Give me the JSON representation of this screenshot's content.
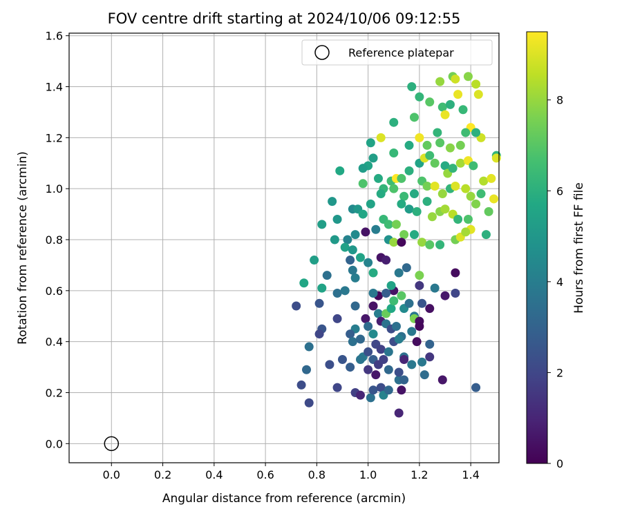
{
  "chart_data": {
    "type": "scatter",
    "title": "FOV centre drift starting at 2024/10/06 09:12:55",
    "xlabel": "Angular distance from reference (arcmin)",
    "ylabel": "Rotation from reference (arcmin)",
    "colorbar_label": "Hours from first FF file",
    "xlim": [
      -0.165,
      1.51
    ],
    "ylim": [
      -0.075,
      1.61
    ],
    "x_ticks": [
      "0.0",
      "0.2",
      "0.4",
      "0.6",
      "0.8",
      "1.0",
      "1.2",
      "1.4"
    ],
    "y_ticks": [
      "0.0",
      "0.2",
      "0.4",
      "0.6",
      "0.8",
      "1.0",
      "1.2",
      "1.4",
      "1.6"
    ],
    "colorbar_range": [
      0,
      9.5
    ],
    "colorbar_ticks": [
      "0",
      "2",
      "4",
      "6",
      "8"
    ],
    "colormap": "viridis",
    "grid": true,
    "legend_position": "top-right",
    "reference": {
      "name": "Reference platepar",
      "x": 0.0,
      "y": 0.0
    },
    "points": [
      [
        1.17,
        1.4,
        6.0
      ],
      [
        1.2,
        1.36,
        6.2
      ],
      [
        1.24,
        1.34,
        7.0
      ],
      [
        1.28,
        1.42,
        8.0
      ],
      [
        1.33,
        1.44,
        7.5
      ],
      [
        1.34,
        1.43,
        8.8
      ],
      [
        1.39,
        1.44,
        7.8
      ],
      [
        1.42,
        1.41,
        8.5
      ],
      [
        1.43,
        1.37,
        9.0
      ],
      [
        1.35,
        1.37,
        9.2
      ],
      [
        1.29,
        1.32,
        6.5
      ],
      [
        1.32,
        1.33,
        6.0
      ],
      [
        1.37,
        1.31,
        6.3
      ],
      [
        1.3,
        1.29,
        9.2
      ],
      [
        1.18,
        1.28,
        6.8
      ],
      [
        1.1,
        1.26,
        6.0
      ],
      [
        1.05,
        1.2,
        9.0
      ],
      [
        1.01,
        1.18,
        5.5
      ],
      [
        1.1,
        1.14,
        6.3
      ],
      [
        1.16,
        1.17,
        5.8
      ],
      [
        1.2,
        1.2,
        9.3
      ],
      [
        1.23,
        1.17,
        7.2
      ],
      [
        1.28,
        1.18,
        7.0
      ],
      [
        1.32,
        1.16,
        7.8
      ],
      [
        1.36,
        1.17,
        7.5
      ],
      [
        1.4,
        1.24,
        9.5
      ],
      [
        1.44,
        1.2,
        8.8
      ],
      [
        1.38,
        1.22,
        6.5
      ],
      [
        1.42,
        1.22,
        6.0
      ],
      [
        1.27,
        1.22,
        6.2
      ],
      [
        1.02,
        1.12,
        5.3
      ],
      [
        1.0,
        1.09,
        5.5
      ],
      [
        0.98,
        1.08,
        5.2
      ],
      [
        0.89,
        1.07,
        5.7
      ],
      [
        1.04,
        1.04,
        5.8
      ],
      [
        1.09,
        1.03,
        6.5
      ],
      [
        1.11,
        1.04,
        9.5
      ],
      [
        1.13,
        1.04,
        6.8
      ],
      [
        1.16,
        1.07,
        6.0
      ],
      [
        1.2,
        1.1,
        5.5
      ],
      [
        1.22,
        1.12,
        9.0
      ],
      [
        1.24,
        1.13,
        6.5
      ],
      [
        1.26,
        1.1,
        7.2
      ],
      [
        1.3,
        1.09,
        5.8
      ],
      [
        1.31,
        1.06,
        8.0
      ],
      [
        1.33,
        1.08,
        6.2
      ],
      [
        1.36,
        1.1,
        8.2
      ],
      [
        1.39,
        1.11,
        9.3
      ],
      [
        1.41,
        1.09,
        6.5
      ],
      [
        1.45,
        1.03,
        8.4
      ],
      [
        1.48,
        1.04,
        9.1
      ],
      [
        1.5,
        1.13,
        6.2
      ],
      [
        1.5,
        1.12,
        9.0
      ],
      [
        0.98,
        1.02,
        6.8
      ],
      [
        1.06,
        1.0,
        6.2
      ],
      [
        1.1,
        1.0,
        6.8
      ],
      [
        1.14,
        0.97,
        6.4
      ],
      [
        1.18,
        0.98,
        5.8
      ],
      [
        1.21,
        1.03,
        6.8
      ],
      [
        1.23,
        1.01,
        7.5
      ],
      [
        1.26,
        1.01,
        9.1
      ],
      [
        1.29,
        0.98,
        8.0
      ],
      [
        1.32,
        1.0,
        6.2
      ],
      [
        1.34,
        1.01,
        9.0
      ],
      [
        1.38,
        1.0,
        8.5
      ],
      [
        1.4,
        0.97,
        8.0
      ],
      [
        1.44,
        0.98,
        6.5
      ],
      [
        1.49,
        0.96,
        9.2
      ],
      [
        1.05,
        0.98,
        5.8
      ],
      [
        0.86,
        0.95,
        5.0
      ],
      [
        0.94,
        0.92,
        4.5
      ],
      [
        0.96,
        0.92,
        5.0
      ],
      [
        0.98,
        0.9,
        5.6
      ],
      [
        1.01,
        0.94,
        5.5
      ],
      [
        1.06,
        0.88,
        6.3
      ],
      [
        1.08,
        0.86,
        6.5
      ],
      [
        1.11,
        0.86,
        7.5
      ],
      [
        1.13,
        0.94,
        5.8
      ],
      [
        1.16,
        0.92,
        5.2
      ],
      [
        1.19,
        0.91,
        6.0
      ],
      [
        1.23,
        0.95,
        6.0
      ],
      [
        1.25,
        0.89,
        8.0
      ],
      [
        1.28,
        0.91,
        7.8
      ],
      [
        1.3,
        0.92,
        8.2
      ],
      [
        1.33,
        0.9,
        8.5
      ],
      [
        1.35,
        0.88,
        6.2
      ],
      [
        1.39,
        0.88,
        6.8
      ],
      [
        1.4,
        0.84,
        9.1
      ],
      [
        1.42,
        0.94,
        7.7
      ],
      [
        1.47,
        0.91,
        7.2
      ],
      [
        0.82,
        0.86,
        5.3
      ],
      [
        0.88,
        0.88,
        5.0
      ],
      [
        0.92,
        0.8,
        4.2
      ],
      [
        0.95,
        0.82,
        4.5
      ],
      [
        0.99,
        0.83,
        0.5
      ],
      [
        1.03,
        0.84,
        4.0
      ],
      [
        1.08,
        0.8,
        4.8
      ],
      [
        1.1,
        0.79,
        8.0
      ],
      [
        1.14,
        0.82,
        7.5
      ],
      [
        1.18,
        0.82,
        5.8
      ],
      [
        1.21,
        0.79,
        8.0
      ],
      [
        1.24,
        0.78,
        7.0
      ],
      [
        1.28,
        0.78,
        6.2
      ],
      [
        1.34,
        0.8,
        7.5
      ],
      [
        1.36,
        0.81,
        9.0
      ],
      [
        1.38,
        0.83,
        8.2
      ],
      [
        1.46,
        0.82,
        6.0
      ],
      [
        0.87,
        0.8,
        5.1
      ],
      [
        0.91,
        0.77,
        5.4
      ],
      [
        0.94,
        0.76,
        5.0
      ],
      [
        0.97,
        0.73,
        5.5
      ],
      [
        1.05,
        0.73,
        0.5
      ],
      [
        1.07,
        0.72,
        0.8
      ],
      [
        1.13,
        0.79,
        0.2
      ],
      [
        1.02,
        0.67,
        5.8
      ],
      [
        1.0,
        0.71,
        4.2
      ],
      [
        0.93,
        0.72,
        3.0
      ],
      [
        0.95,
        0.65,
        4.0
      ],
      [
        0.94,
        0.68,
        3.8
      ],
      [
        0.79,
        0.72,
        5.3
      ],
      [
        0.75,
        0.63,
        5.6
      ],
      [
        0.82,
        0.61,
        5.5
      ],
      [
        0.84,
        0.66,
        3.5
      ],
      [
        0.88,
        0.59,
        3.5
      ],
      [
        0.91,
        0.6,
        3.8
      ],
      [
        1.04,
        0.58,
        0.2
      ],
      [
        1.1,
        0.6,
        0.5
      ],
      [
        1.12,
        0.67,
        3.8
      ],
      [
        1.15,
        0.69,
        3.2
      ],
      [
        1.2,
        0.66,
        7.6
      ],
      [
        1.2,
        0.62,
        1.5
      ],
      [
        1.26,
        0.61,
        3.8
      ],
      [
        1.3,
        0.58,
        0.6
      ],
      [
        1.34,
        0.59,
        2.0
      ],
      [
        1.34,
        0.67,
        0.3
      ],
      [
        1.13,
        0.58,
        7.0
      ],
      [
        1.09,
        0.62,
        5.5
      ],
      [
        1.07,
        0.59,
        2.8
      ],
      [
        1.02,
        0.59,
        3.8
      ],
      [
        0.72,
        0.54,
        2.2
      ],
      [
        0.81,
        0.55,
        2.5
      ],
      [
        0.88,
        0.49,
        2.0
      ],
      [
        0.95,
        0.54,
        3.2
      ],
      [
        1.02,
        0.54,
        0.5
      ],
      [
        1.04,
        0.51,
        4.0
      ],
      [
        1.07,
        0.51,
        7.3
      ],
      [
        1.09,
        0.53,
        5.7
      ],
      [
        1.1,
        0.56,
        6.5
      ],
      [
        1.14,
        0.53,
        4.5
      ],
      [
        1.16,
        0.55,
        3.5
      ],
      [
        1.18,
        0.5,
        3.8
      ],
      [
        1.18,
        0.49,
        7.6
      ],
      [
        1.21,
        0.55,
        2.5
      ],
      [
        1.24,
        0.53,
        0.4
      ],
      [
        1.2,
        0.48,
        0.3
      ],
      [
        0.99,
        0.49,
        0.6
      ],
      [
        1.0,
        0.46,
        3.3
      ],
      [
        1.02,
        0.43,
        4.5
      ],
      [
        1.05,
        0.48,
        0.8
      ],
      [
        1.07,
        0.47,
        3.6
      ],
      [
        1.09,
        0.45,
        2.2
      ],
      [
        1.11,
        0.46,
        3.5
      ],
      [
        1.13,
        0.42,
        3.5
      ],
      [
        1.17,
        0.44,
        3.8
      ],
      [
        1.2,
        0.46,
        0.2
      ],
      [
        0.95,
        0.45,
        4.0
      ],
      [
        0.93,
        0.43,
        2.8
      ],
      [
        0.82,
        0.45,
        2.5
      ],
      [
        0.81,
        0.43,
        2.0
      ],
      [
        0.77,
        0.38,
        3.5
      ],
      [
        0.76,
        0.29,
        3.2
      ],
      [
        0.85,
        0.31,
        2.3
      ],
      [
        0.9,
        0.33,
        2.5
      ],
      [
        0.94,
        0.4,
        3.5
      ],
      [
        0.97,
        0.41,
        3.2
      ],
      [
        0.98,
        0.34,
        3.8
      ],
      [
        1.0,
        0.36,
        2.3
      ],
      [
        1.03,
        0.39,
        2.0
      ],
      [
        1.05,
        0.37,
        1.8
      ],
      [
        1.08,
        0.36,
        3.7
      ],
      [
        1.1,
        0.4,
        2.2
      ],
      [
        1.12,
        0.41,
        4.0
      ],
      [
        1.14,
        0.34,
        3.5
      ],
      [
        1.17,
        0.31,
        3.8
      ],
      [
        1.19,
        0.4,
        0.3
      ],
      [
        1.21,
        0.32,
        3.8
      ],
      [
        1.24,
        0.34,
        1.5
      ],
      [
        1.24,
        0.39,
        3.0
      ],
      [
        0.93,
        0.3,
        2.8
      ],
      [
        0.97,
        0.33,
        3.7
      ],
      [
        1.0,
        0.29,
        1.5
      ],
      [
        1.02,
        0.33,
        2.8
      ],
      [
        1.04,
        0.31,
        1.7
      ],
      [
        1.06,
        0.33,
        1.8
      ],
      [
        1.08,
        0.29,
        3.2
      ],
      [
        1.12,
        0.25,
        3.5
      ],
      [
        1.14,
        0.25,
        3.0
      ],
      [
        1.14,
        0.33,
        1.0
      ],
      [
        1.12,
        0.28,
        2.3
      ],
      [
        1.22,
        0.27,
        3.4
      ],
      [
        1.29,
        0.25,
        0.6
      ],
      [
        0.74,
        0.23,
        2.2
      ],
      [
        0.77,
        0.16,
        2.1
      ],
      [
        0.88,
        0.22,
        2.0
      ],
      [
        0.95,
        0.2,
        1.8
      ],
      [
        0.97,
        0.19,
        1.0
      ],
      [
        1.01,
        0.18,
        3.5
      ],
      [
        1.02,
        0.21,
        2.5
      ],
      [
        1.05,
        0.22,
        2.2
      ],
      [
        1.06,
        0.19,
        4.2
      ],
      [
        1.08,
        0.21,
        3.2
      ],
      [
        1.13,
        0.21,
        0.5
      ],
      [
        1.12,
        0.12,
        1.0
      ],
      [
        1.42,
        0.22,
        2.8
      ],
      [
        1.03,
        0.27,
        0.6
      ]
    ]
  }
}
